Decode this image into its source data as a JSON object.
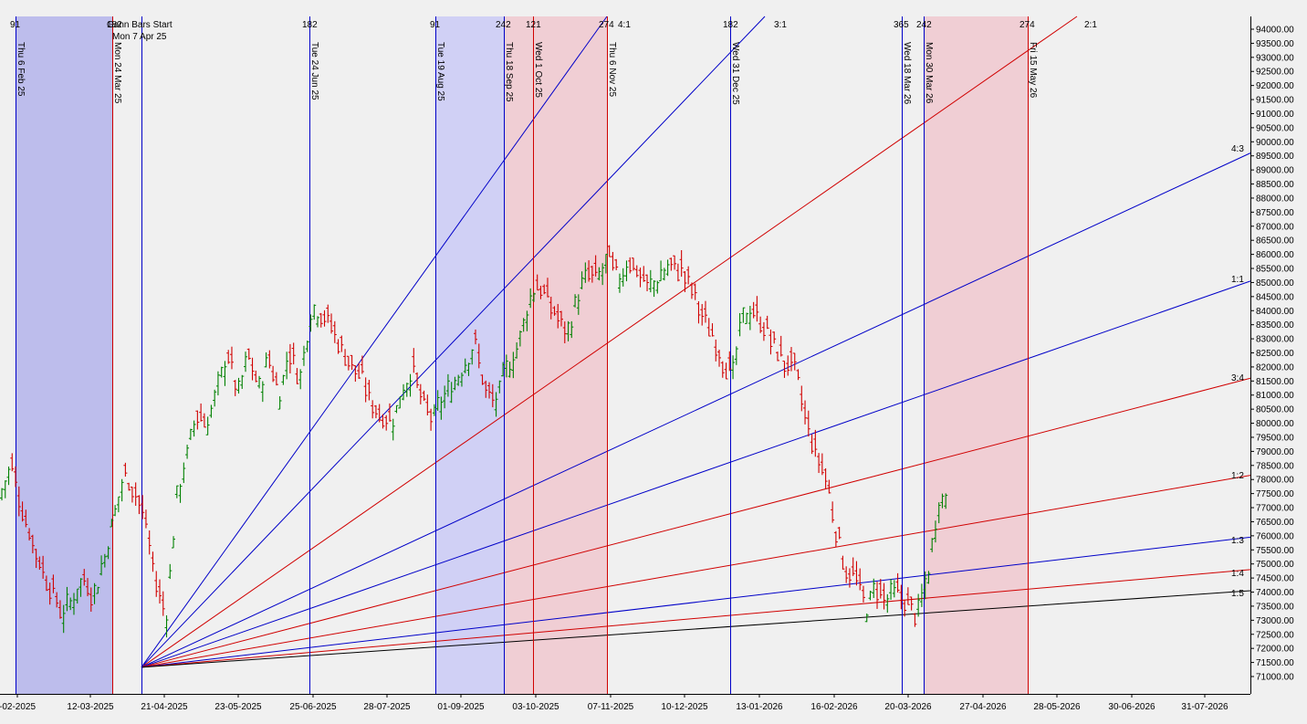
{
  "chart_data": {
    "type": "line",
    "title": "",
    "ylim": [
      70700,
      94500
    ],
    "y_ticks": [
      71000,
      71500,
      72000,
      72500,
      73000,
      73500,
      74000,
      74500,
      75000,
      75500,
      76000,
      76500,
      77000,
      77500,
      78000,
      78500,
      79000,
      79500,
      80000,
      80500,
      81000,
      81500,
      82000,
      82500,
      83000,
      83500,
      84000,
      84500,
      85000,
      85500,
      86000,
      86500,
      87000,
      87500,
      88000,
      88500,
      89000,
      89500,
      90000,
      90500,
      91000,
      91500,
      92000,
      92500,
      93000,
      93500,
      94000
    ],
    "x_tick_labels": [
      "-02-2025",
      "12-03-2025",
      "21-04-2025",
      "23-05-2025",
      "25-06-2025",
      "28-07-2025",
      "01-09-2025",
      "03-10-2025",
      "07-11-2025",
      "10-12-2025",
      "13-01-2026",
      "16-02-2026",
      "20-03-2026",
      "27-04-2026",
      "28-05-2026",
      "30-06-2026",
      "31-07-2026"
    ],
    "gann_start_label": "Gann Bars Start",
    "gann_start_date": "Mon 7 Apr 25",
    "vertical_lines": [
      {
        "date": "Thu 6 Feb 25",
        "count": "91",
        "color": "#0000c8"
      },
      {
        "date": "Mon 24 Mar 25",
        "count": "182",
        "color": "#d00000"
      },
      {
        "date": "",
        "count": "",
        "color": "#0000c8"
      },
      {
        "date": "Tue 24 Jun 25",
        "count": "182",
        "color": "#0000c8"
      },
      {
        "date": "Tue 19 Aug 25",
        "count": "91",
        "color": "#0000c8"
      },
      {
        "date": "Thu 18 Sep 25",
        "count": "242",
        "color": "#0000c8"
      },
      {
        "date": "Wed 1 Oct 25",
        "count": "121",
        "color": "#d00000"
      },
      {
        "date": "Thu 6 Nov 25",
        "count": "274",
        "color": "#d00000"
      },
      {
        "date": "Wed 31 Dec 25",
        "count": "182",
        "color": "#0000c8"
      },
      {
        "date": "Wed 18 Mar 26",
        "count": "365",
        "color": "#0000c8"
      },
      {
        "date": "Mon 30 Mar 26",
        "count": "242",
        "color": "#0000c8"
      },
      {
        "date": "Fri 15 May 26",
        "count": "274",
        "color": "#d00000"
      }
    ],
    "shaded_zones": [
      {
        "color": "blue"
      },
      {
        "color": "blue"
      },
      {
        "color": "red"
      },
      {
        "color": "red"
      }
    ],
    "gann_fan": [
      {
        "ratio": "4:1",
        "end_price": 94200,
        "color": "#0000c8",
        "label_at": "top"
      },
      {
        "ratio": "3:1",
        "end_price": 94600,
        "color": "#0000c8",
        "label_at": "top"
      },
      {
        "ratio": "2:1",
        "end_price": 94600,
        "color": "#d00000",
        "label_at": "top"
      },
      {
        "ratio": "4:3",
        "end_price": 89600,
        "color": "#0000c8",
        "label_at": "right"
      },
      {
        "ratio": "1:1",
        "end_price": 85050,
        "color": "#0000c8",
        "label_at": "right"
      },
      {
        "ratio": "3:4",
        "end_price": 81600,
        "color": "#d00000",
        "label_at": "right"
      },
      {
        "ratio": "1:2",
        "end_price": 78150,
        "color": "#d00000",
        "label_at": "right"
      },
      {
        "ratio": "1:3",
        "end_price": 75950,
        "color": "#0000c8",
        "label_at": "right"
      },
      {
        "ratio": "1:4",
        "end_price": 74800,
        "color": "#d00000",
        "label_at": "right"
      },
      {
        "ratio": "1:5",
        "end_price": 74050,
        "color": "#000000",
        "label_at": "right"
      }
    ],
    "price_path": [
      77500,
      78500,
      77000,
      75800,
      74800,
      74000,
      73200,
      73800,
      74500,
      73900,
      75200,
      76800,
      78200,
      77600,
      76500,
      74300,
      73200,
      77300,
      78800,
      80400,
      80000,
      81200,
      82500,
      81000,
      82400,
      81200,
      82300,
      81000,
      82600,
      81600,
      83900,
      84000,
      83500,
      82700,
      82100,
      81600,
      80700,
      80300,
      80100,
      81200,
      81900,
      80600,
      80200,
      80900,
      81400,
      82100,
      82800,
      81200,
      80700,
      81900,
      82500,
      84000,
      85000,
      84400,
      83800,
      83200,
      84500,
      85300,
      85200,
      85800,
      85100,
      85800,
      85300,
      84800,
      85200,
      85600,
      85500,
      84800,
      83900,
      83200,
      82300,
      81700,
      83800,
      84000,
      83500,
      82800,
      82200,
      82000,
      80300,
      79000,
      78200,
      76300,
      74800,
      74500,
      73400,
      74200,
      73700,
      74000,
      73600,
      73200,
      74700,
      77200,
      77400
    ]
  },
  "colors": {
    "up_bar": "#008000",
    "down_bar": "#d00000",
    "blue": "#0000c8",
    "red": "#d00000"
  }
}
